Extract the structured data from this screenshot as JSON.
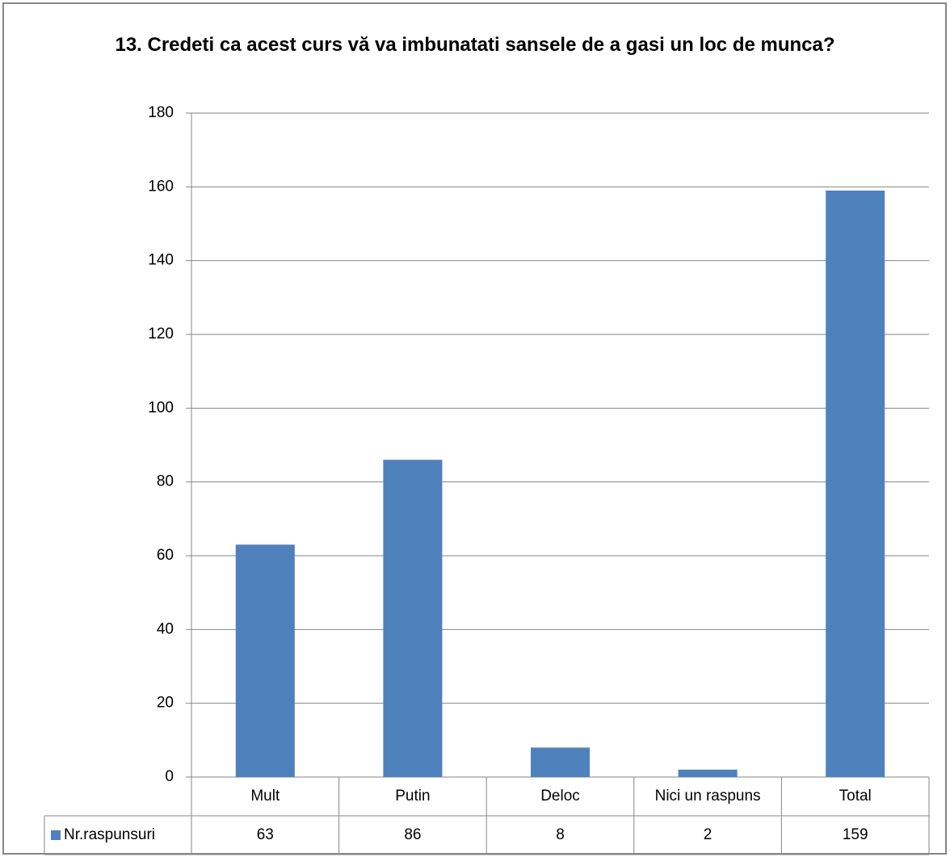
{
  "chart_data": {
    "type": "bar",
    "title": "13. Credeti ca acest curs vă va imbunatati sansele de a gasi un loc de munca?",
    "categories": [
      "Mult",
      "Putin",
      "Deloc",
      "Nici un raspuns",
      "Total"
    ],
    "series": [
      {
        "name": "Nr.raspunsuri",
        "color": "#4f81bd",
        "values": [
          63,
          86,
          8,
          2,
          159
        ]
      }
    ],
    "ylim": [
      0,
      180
    ],
    "yticks": [
      0,
      20,
      40,
      60,
      80,
      100,
      120,
      140,
      160,
      180
    ],
    "grid": true,
    "data_table": true
  }
}
